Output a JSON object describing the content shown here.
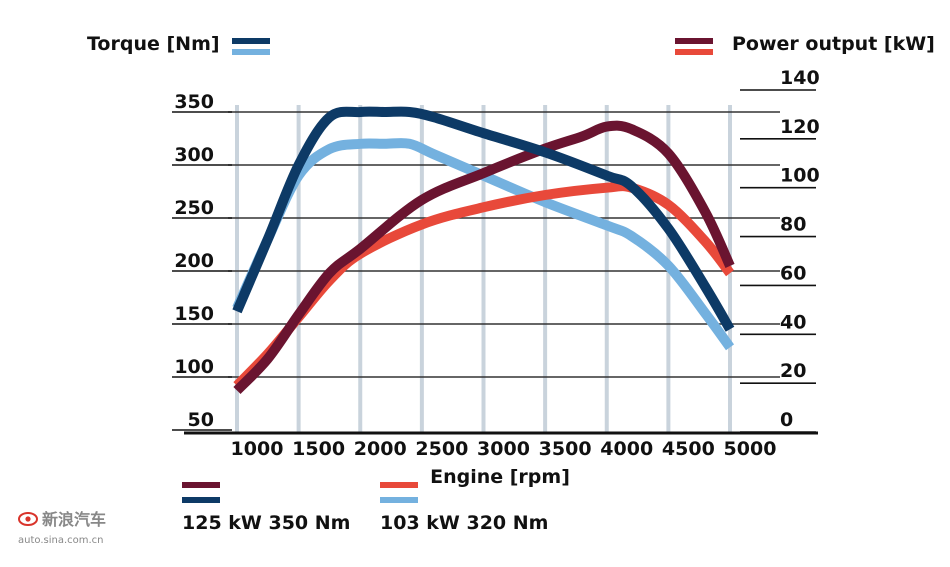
{
  "chart_data": {
    "type": "line",
    "title": "",
    "xlabel": "Engine [rpm]",
    "ylabel_left": "Torque [Nm]",
    "ylabel_right": "Power output [kW]",
    "xlim": [
      1000,
      5000
    ],
    "ylim_left": [
      50,
      350
    ],
    "ylim_right": [
      0,
      140
    ],
    "x_ticks": [
      "1000",
      "1500",
      "2000",
      "2500",
      "3000",
      "3500",
      "4000",
      "4500",
      "5000"
    ],
    "y_left_ticks": [
      "50",
      "100",
      "150",
      "200",
      "250",
      "300",
      "350"
    ],
    "y_right_ticks": [
      "0",
      "20",
      "40",
      "60",
      "80",
      "100",
      "120",
      "140"
    ],
    "grid": true,
    "series": [
      {
        "axis": "left",
        "engine": "125 kW 350 Nm",
        "color": "#0d3a66",
        "x": [
          1000,
          1250,
          1500,
          1750,
          2000,
          2200,
          2400,
          2600,
          3000,
          3500,
          4000,
          4200,
          4500,
          4800,
          5000
        ],
        "y": [
          162,
          230,
          300,
          345,
          350,
          350,
          350,
          345,
          330,
          312,
          290,
          280,
          240,
          185,
          145
        ]
      },
      {
        "axis": "left",
        "engine": "103 kW 320 Nm",
        "color": "#74b1df",
        "x": [
          1000,
          1250,
          1500,
          1750,
          2000,
          2200,
          2400,
          2600,
          3000,
          3500,
          4000,
          4200,
          4500,
          4800,
          5000
        ],
        "y": [
          165,
          230,
          290,
          315,
          320,
          320,
          320,
          310,
          290,
          265,
          243,
          233,
          205,
          160,
          128
        ]
      },
      {
        "axis": "right",
        "engine": "125 kW 350 Nm",
        "color": "#6a1430",
        "x": [
          1000,
          1250,
          1500,
          1750,
          2000,
          2500,
          3000,
          3500,
          3800,
          4000,
          4200,
          4500,
          4800,
          5000
        ],
        "y": [
          17,
          30,
          48,
          65,
          75,
          95,
          106,
          116,
          121,
          125,
          124,
          114,
          90,
          68
        ]
      },
      {
        "axis": "right",
        "engine": "103 kW 320 Nm",
        "color": "#e8493a",
        "x": [
          1000,
          1250,
          1500,
          1750,
          2000,
          2500,
          3000,
          3500,
          4000,
          4200,
          4500,
          4800,
          5000
        ],
        "y": [
          19,
          32,
          47,
          62,
          73,
          85,
          92,
          97,
          100,
          100,
          93,
          78,
          65
        ]
      }
    ],
    "legend": {
      "torque_colors": [
        "#0d3a66",
        "#74b1df"
      ],
      "power_colors": [
        "#6a1430",
        "#e8493a"
      ],
      "engines": [
        {
          "label": "125 kW 350 Nm",
          "power_color": "#6a1430",
          "torque_color": "#0d3a66"
        },
        {
          "label": "103 kW 320 Nm",
          "power_color": "#e8493a",
          "torque_color": "#74b1df"
        }
      ]
    }
  },
  "watermark": {
    "brand": "新浪汽车",
    "url": "auto.sina.com.cn"
  }
}
